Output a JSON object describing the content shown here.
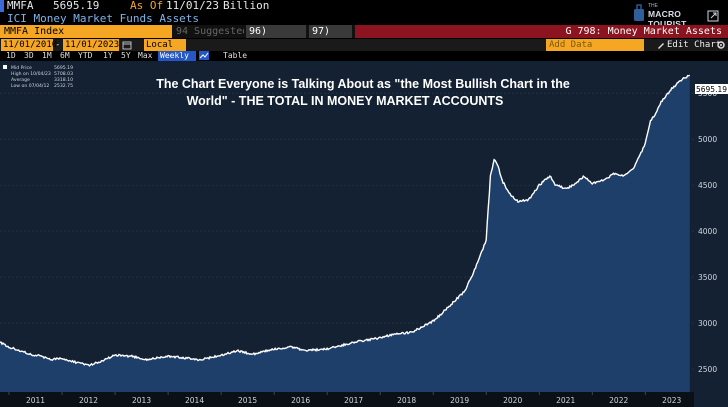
{
  "header": {
    "ticker": "MMFA",
    "value": "5695.19",
    "as_of_label": "As Of",
    "as_of_date": "11/01/23",
    "unit": "Billion",
    "subtitle": "ICI Money Market Funds Assets"
  },
  "brand": {
    "small": "THE",
    "name": "MACRO TOURIST"
  },
  "toolbar": {
    "index_label": "MMFA Index",
    "suggested": "94 Suggested Charts",
    "actions": "96) Actions ▾",
    "edit": "97) Edit ▾",
    "right_title": "G 798: Money Market Assets"
  },
  "controls": {
    "start_date": "11/01/2010",
    "end_date": "11/01/2023",
    "currency": "Local CCY",
    "add_data_placeholder": "Add Data",
    "edit_chart": "Edit Chart"
  },
  "periods": [
    "1D",
    "3D",
    "1M",
    "6M",
    "YTD",
    "1Y",
    "5Y",
    "Max"
  ],
  "frequency": "Weekly ▼",
  "table_label": "Table",
  "legend": [
    {
      "label": "Mid Price",
      "value": "5695.19"
    },
    {
      "label": "High on 10/04/23",
      "value": "5708.03"
    },
    {
      "label": "Average",
      "value": "3318.10"
    },
    {
      "label": "Low on 07/04/12",
      "value": "2532.75"
    }
  ],
  "colors": {
    "background": "#142133",
    "fill": "#1d3f6a",
    "line": "#ffffff",
    "accent": "#f5a623",
    "band": "#8b1420"
  },
  "chart_data": {
    "type": "area",
    "title_line1": "The Chart Everyone is Talking About as \"the Most Bullish Chart in the",
    "title_line2": "World\" - THE TOTAL IN MONEY MARKET ACCOUNTS",
    "xlabel": "",
    "ylabel": "",
    "x_ticks": [
      "2011",
      "2012",
      "2013",
      "2014",
      "2015",
      "2016",
      "2017",
      "2018",
      "2019",
      "2020",
      "2021",
      "2022",
      "2023"
    ],
    "y_ticks": [
      2500,
      3000,
      3500,
      4000,
      4500,
      5000,
      5500
    ],
    "ylim": [
      2250,
      5850
    ],
    "xlim": [
      2010.83,
      2023.92
    ],
    "last_value_label": "5695.19",
    "x": [
      2010.83,
      2011.0,
      2011.2,
      2011.4,
      2011.6,
      2011.8,
      2012.0,
      2012.2,
      2012.4,
      2012.5,
      2012.8,
      2013.0,
      2013.3,
      2013.6,
      2014.0,
      2014.3,
      2014.6,
      2015.0,
      2015.3,
      2015.6,
      2016.0,
      2016.3,
      2016.6,
      2017.0,
      2017.3,
      2017.6,
      2018.0,
      2018.3,
      2018.6,
      2019.0,
      2019.3,
      2019.6,
      2019.8,
      2020.0,
      2020.08,
      2020.15,
      2020.22,
      2020.3,
      2020.45,
      2020.6,
      2020.8,
      2021.0,
      2021.2,
      2021.3,
      2021.5,
      2021.7,
      2021.85,
      2022.0,
      2022.2,
      2022.4,
      2022.6,
      2022.8,
      2023.0,
      2023.1,
      2023.2,
      2023.3,
      2023.5,
      2023.7,
      2023.84
    ],
    "values": [
      2790,
      2740,
      2700,
      2660,
      2640,
      2600,
      2620,
      2580,
      2560,
      2540,
      2600,
      2650,
      2640,
      2600,
      2640,
      2620,
      2600,
      2650,
      2700,
      2660,
      2720,
      2740,
      2700,
      2720,
      2760,
      2800,
      2840,
      2880,
      2900,
      3020,
      3180,
      3350,
      3600,
      3900,
      4600,
      4780,
      4720,
      4550,
      4400,
      4320,
      4340,
      4500,
      4600,
      4510,
      4460,
      4520,
      4600,
      4520,
      4550,
      4620,
      4600,
      4700,
      4950,
      5200,
      5280,
      5400,
      5550,
      5650,
      5695
    ]
  }
}
